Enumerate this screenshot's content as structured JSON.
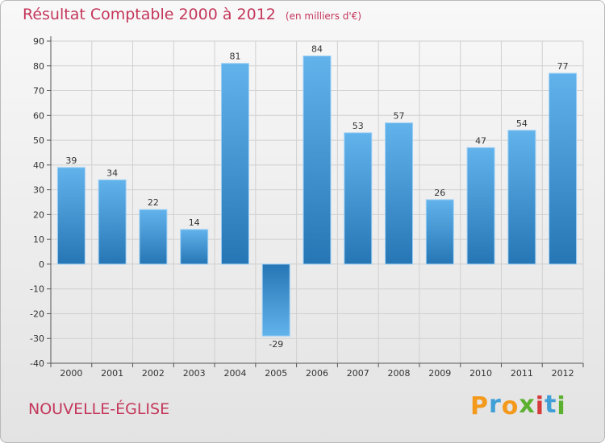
{
  "header": {
    "title": "Résultat Comptable 2000 à 2012",
    "unit": "(en milliers d'€)"
  },
  "footer": {
    "commune": "NOUVELLE-ÉGLISE",
    "brand_letters": [
      "P",
      "r",
      "o",
      "x",
      "i",
      "t",
      "i"
    ],
    "brand_colors": [
      "#f39a1d",
      "#3f9fd6",
      "#f39a1d",
      "#5cb030",
      "#d63b3b",
      "#3f9fd6",
      "#5cb030"
    ]
  },
  "colors": {
    "title": "#c4375b",
    "bar_light": "#62b3ec",
    "bar_dark": "#2676b5",
    "grid": "#d0d0d0",
    "axis": "#555555"
  },
  "chart_data": {
    "type": "bar",
    "title": "Résultat Comptable 2000 à 2012",
    "subtitle": "(en milliers d'€)",
    "xlabel": "",
    "ylabel": "",
    "categories": [
      "2000",
      "2001",
      "2002",
      "2003",
      "2004",
      "2005",
      "2006",
      "2007",
      "2008",
      "2009",
      "2010",
      "2011",
      "2012"
    ],
    "values": [
      39,
      34,
      22,
      14,
      81,
      -29,
      84,
      53,
      57,
      26,
      47,
      54,
      77
    ],
    "ylim": [
      -40,
      90
    ],
    "yticks": [
      90,
      80,
      70,
      60,
      50,
      40,
      30,
      20,
      10,
      0,
      -10,
      -20,
      -30,
      -40
    ],
    "grid": true,
    "legend": "none"
  }
}
